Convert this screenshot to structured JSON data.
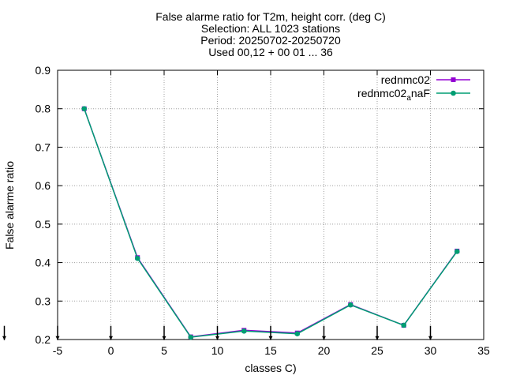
{
  "chart_data": {
    "type": "line",
    "title": [
      "False alarme ratio  for T2m, height corr. (deg C)",
      "Selection: ALL   1023 stations",
      "Period: 20250702-20250720",
      "Used 00,12 + 00 01 ... 36"
    ],
    "xlabel": "classes C)",
    "ylabel": "False alarme ratio",
    "xlim": [
      -5,
      35
    ],
    "ylim": [
      0.2,
      0.9
    ],
    "xticks": [
      -5,
      0,
      5,
      10,
      15,
      20,
      25,
      30,
      35
    ],
    "yticks": [
      0.2,
      0.3,
      0.4,
      0.5,
      0.6,
      0.7,
      0.8,
      0.9
    ],
    "grid": true,
    "legend_position": "top-right",
    "x": [
      -2.5,
      2.5,
      7.5,
      12.5,
      17.5,
      22.5,
      27.5,
      32.5
    ],
    "series": [
      {
        "name": "rednmc02",
        "name_sub": "",
        "color": "#9400d3",
        "marker": "square",
        "values": [
          0.8,
          0.413,
          0.207,
          0.224,
          0.217,
          0.291,
          0.237,
          0.43
        ]
      },
      {
        "name": "rednmc02",
        "name_sub": "a",
        "name_suffix": "naF",
        "color": "#009e73",
        "marker": "circle",
        "values": [
          0.8,
          0.411,
          0.206,
          0.222,
          0.215,
          0.29,
          0.237,
          0.429
        ]
      }
    ],
    "count_markers": {
      "x": [
        -10,
        -5,
        0,
        5,
        10,
        15,
        20,
        25,
        30
      ],
      "y": 0.215
    }
  }
}
